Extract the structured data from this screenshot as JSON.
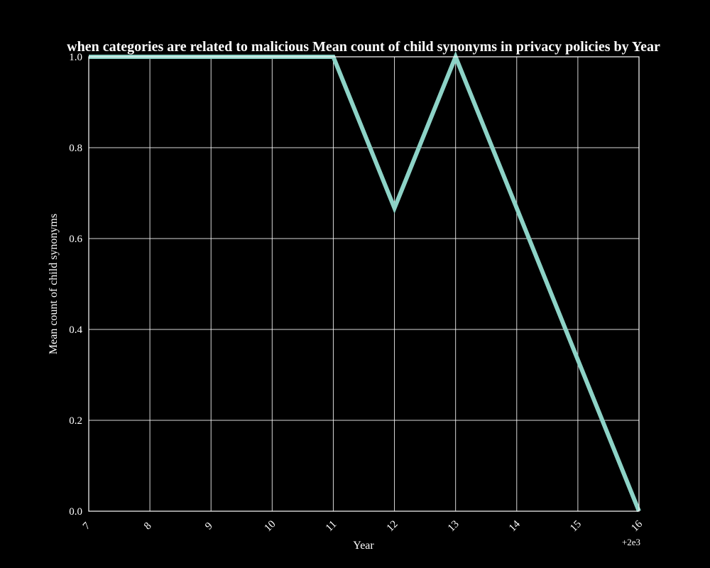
{
  "chart_data": {
    "type": "line",
    "title": "when categories are related to malicious Mean count of child synonyms in privacy policies by Year",
    "xlabel": "Year",
    "ylabel": "Mean count of child synonyms",
    "x_offset_label": "+2e3",
    "x": [
      7,
      8,
      9,
      10,
      11,
      12,
      13,
      14,
      15,
      16
    ],
    "series": [
      {
        "values": [
          1.0,
          1.0,
          1.0,
          1.0,
          1.0,
          0.667,
          1.0,
          0.667,
          0.333,
          0.0
        ],
        "color": "#8dd3c7"
      }
    ],
    "xlim": [
      7,
      16
    ],
    "ylim": [
      0.0,
      1.0
    ],
    "x_ticks": [
      7,
      8,
      9,
      10,
      11,
      12,
      13,
      14,
      15,
      16
    ],
    "x_tick_labels": [
      "7",
      "8",
      "9",
      "10",
      "11",
      "12",
      "13",
      "14",
      "15",
      "16"
    ],
    "y_ticks": [
      0.0,
      0.2,
      0.4,
      0.6,
      0.8,
      1.0
    ],
    "y_tick_labels": [
      "0.0",
      "0.2",
      "0.4",
      "0.6",
      "0.8",
      "1.0"
    ],
    "grid": true,
    "background": "#000000",
    "foreground": "#ffffff"
  }
}
